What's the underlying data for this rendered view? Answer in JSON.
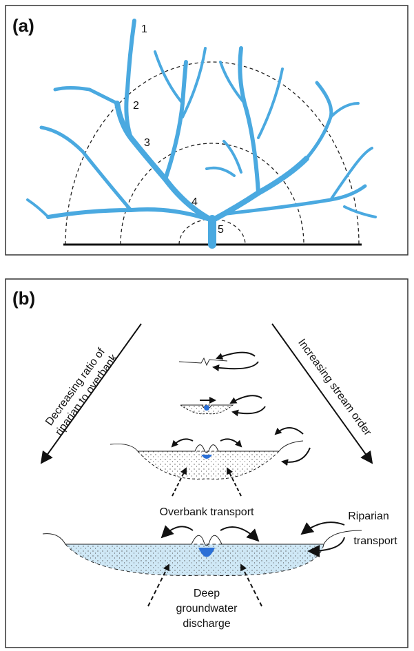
{
  "panel_a": {
    "label": "(a)",
    "order_labels": [
      "1",
      "2",
      "3",
      "4",
      "5"
    ]
  },
  "panel_b": {
    "label": "(b)",
    "left_arrow_label": [
      "Decreasing ratio of",
      "riparian to overbank"
    ],
    "right_arrow_label": "Increasing stream order",
    "overbank_label": "Overbank transport",
    "riparian_label": [
      "Riparian",
      "transport"
    ],
    "groundwater_label": [
      "Deep",
      "groundwater",
      "discharge"
    ]
  }
}
